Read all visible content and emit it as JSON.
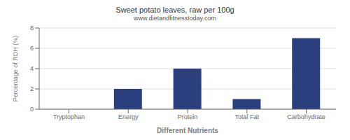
{
  "chart_data": {
    "type": "bar",
    "title": "Sweet potato leaves, raw per 100g",
    "subtitle": "www.dietandfitnesstoday.com",
    "xlabel": "Different Nutrients",
    "ylabel": "Percentage of RDH (%)",
    "categories": [
      "Tryptophan",
      "Energy",
      "Protein",
      "Total Fat",
      "Carbohydrate"
    ],
    "values": [
      0,
      2,
      4,
      1,
      7
    ],
    "color": "#2b3f7e",
    "ylim": [
      0,
      8
    ],
    "yticks": [
      0,
      2,
      4,
      6,
      8
    ],
    "grid": true
  }
}
